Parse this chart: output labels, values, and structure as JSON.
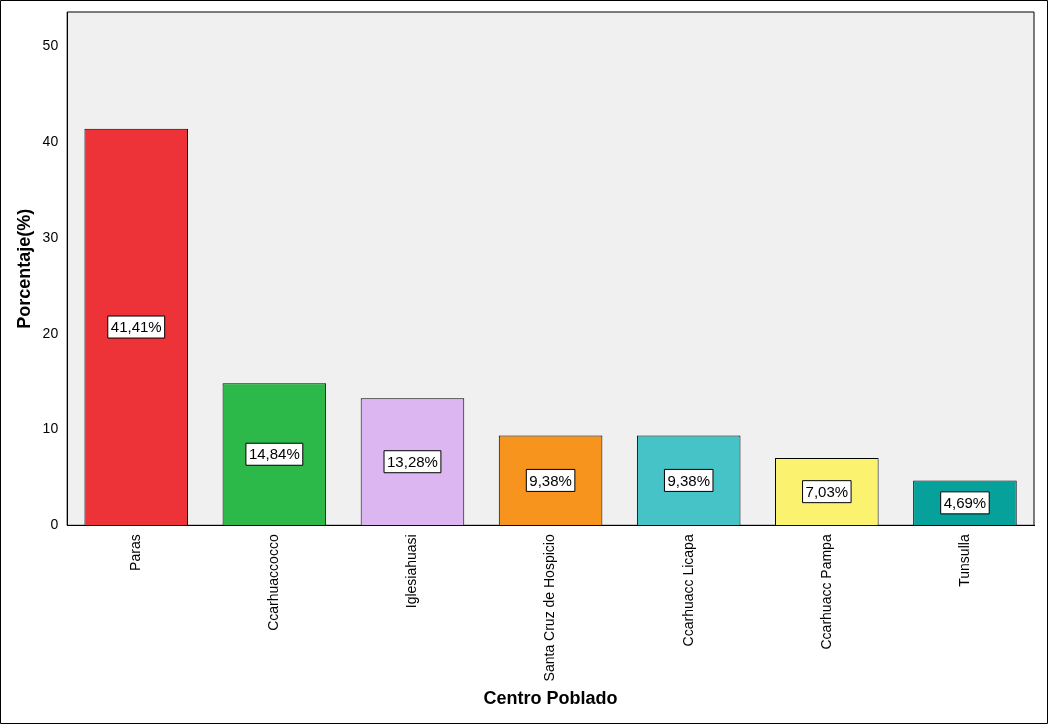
{
  "chart_data": {
    "type": "bar",
    "xlabel": "Centro Poblado",
    "ylabel": "Porcentaje(%)",
    "categories": [
      "Paras",
      "Ccarhuaccocco",
      "Iglesiahuasi",
      "Santa Cruz de Hospicio",
      "Ccarhuacc Licapa",
      "Ccarhuacc Pampa",
      "Tunsulla"
    ],
    "values": [
      41.41,
      14.84,
      13.28,
      9.38,
      9.38,
      7.03,
      4.69
    ],
    "colors": [
      "#ee3338",
      "#2db84a",
      "#dcb6f0",
      "#f7941d",
      "#45c3c6",
      "#fbf36f",
      "#06a19a"
    ],
    "value_labels": [
      "41,41%",
      "14,84%",
      "13,28%",
      "9,38%",
      "9,38%",
      "7,03%",
      "4,69%"
    ],
    "ylim": [
      0,
      53.6
    ],
    "yticks": [
      0,
      10,
      20,
      30,
      40,
      50
    ],
    "grid": false,
    "legend": false
  }
}
